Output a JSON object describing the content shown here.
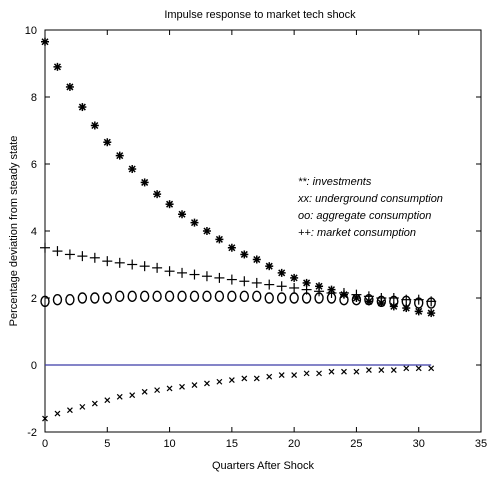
{
  "chart_data": {
    "type": "scatter",
    "title": "Impulse response to market tech shock",
    "xlabel": "Quarters After Shock",
    "ylabel": "Percentage deviation from steady state",
    "xlim": [
      0,
      35
    ],
    "ylim": [
      -2,
      10
    ],
    "xticks": [
      0,
      5,
      10,
      15,
      20,
      25,
      30,
      35
    ],
    "yticks": [
      -2,
      0,
      2,
      4,
      6,
      8,
      10
    ],
    "grid": false,
    "legend_position": "right",
    "legend": [
      "**: investments",
      "xx: underground consumption",
      "oo: aggregate consumption",
      "++: market consumption"
    ],
    "series": [
      {
        "marker": "*",
        "color": "#000000",
        "x": [
          0,
          1,
          2,
          3,
          4,
          5,
          6,
          7,
          8,
          9,
          10,
          11,
          12,
          13,
          14,
          15,
          16,
          17,
          18,
          19,
          20,
          21,
          22,
          23,
          24,
          25,
          26,
          27,
          28,
          29,
          30,
          31
        ],
        "values": [
          9.65,
          8.9,
          8.3,
          7.7,
          7.15,
          6.65,
          6.25,
          5.85,
          5.45,
          5.1,
          4.8,
          4.5,
          4.25,
          4.0,
          3.75,
          3.5,
          3.3,
          3.15,
          2.95,
          2.75,
          2.6,
          2.45,
          2.35,
          2.25,
          2.1,
          2.0,
          1.9,
          1.85,
          1.75,
          1.7,
          1.6,
          1.55
        ]
      },
      {
        "marker": "+",
        "color": "#000000",
        "x": [
          0,
          1,
          2,
          3,
          4,
          5,
          6,
          7,
          8,
          9,
          10,
          11,
          12,
          13,
          14,
          15,
          16,
          17,
          18,
          19,
          20,
          21,
          22,
          23,
          24,
          25,
          26,
          27,
          28,
          29,
          30,
          31
        ],
        "values": [
          3.5,
          3.4,
          3.3,
          3.25,
          3.2,
          3.1,
          3.05,
          3.0,
          2.95,
          2.9,
          2.8,
          2.75,
          2.7,
          2.65,
          2.6,
          2.55,
          2.5,
          2.45,
          2.4,
          2.35,
          2.3,
          2.25,
          2.2,
          2.15,
          2.15,
          2.1,
          2.05,
          2.0,
          2.0,
          1.95,
          1.95,
          1.9
        ]
      },
      {
        "marker": "o",
        "color": "#000000",
        "x": [
          0,
          1,
          2,
          3,
          4,
          5,
          6,
          7,
          8,
          9,
          10,
          11,
          12,
          13,
          14,
          15,
          16,
          17,
          18,
          19,
          20,
          21,
          22,
          23,
          24,
          25,
          26,
          27,
          28,
          29,
          30,
          31
        ],
        "values": [
          1.9,
          1.95,
          1.95,
          2.0,
          2.0,
          2.0,
          2.05,
          2.05,
          2.05,
          2.05,
          2.05,
          2.05,
          2.05,
          2.05,
          2.05,
          2.05,
          2.05,
          2.05,
          2.0,
          2.0,
          2.0,
          2.0,
          2.0,
          2.0,
          1.95,
          1.95,
          1.95,
          1.9,
          1.9,
          1.9,
          1.85,
          1.85
        ]
      },
      {
        "marker": "x",
        "color": "#000000",
        "x": [
          0,
          1,
          2,
          3,
          4,
          5,
          6,
          7,
          8,
          9,
          10,
          11,
          12,
          13,
          14,
          15,
          16,
          17,
          18,
          19,
          20,
          21,
          22,
          23,
          24,
          25,
          26,
          27,
          28,
          29,
          30,
          31
        ],
        "values": [
          -1.6,
          -1.45,
          -1.35,
          -1.25,
          -1.15,
          -1.05,
          -0.95,
          -0.9,
          -0.8,
          -0.75,
          -0.7,
          -0.65,
          -0.6,
          -0.55,
          -0.5,
          -0.45,
          -0.4,
          -0.4,
          -0.35,
          -0.3,
          -0.3,
          -0.25,
          -0.25,
          -0.2,
          -0.2,
          -0.2,
          -0.15,
          -0.15,
          -0.15,
          -0.1,
          -0.1,
          -0.1
        ]
      },
      {
        "marker": "line",
        "color": "#3a3aa8",
        "x": [
          0,
          31
        ],
        "values": [
          0,
          0
        ]
      }
    ]
  }
}
